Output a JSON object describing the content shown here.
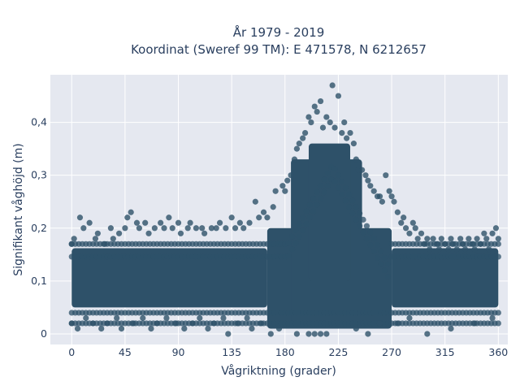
{
  "chart_data": {
    "type": "scatter",
    "title_line1": "År 1979 - 2019",
    "title_line2": "Koordinat (Sweref 99 TM): E 471578, N 6212657",
    "xlabel": "Vågriktning (grader)",
    "ylabel": "Signifikant våghöjd (m)",
    "xlim": [
      -18,
      368
    ],
    "ylim": [
      -0.02,
      0.49
    ],
    "x_ticks": [
      0,
      45,
      90,
      135,
      180,
      225,
      270,
      315,
      360
    ],
    "x_tick_labels": [
      "0",
      "45",
      "90",
      "135",
      "180",
      "225",
      "270",
      "315",
      "360"
    ],
    "y_ticks": [
      0,
      0.1,
      0.2,
      0.3,
      0.4
    ],
    "y_tick_labels": [
      "0",
      "0,1",
      "0,2",
      "0,3",
      "0,4"
    ],
    "grid": true,
    "marker_color": "#2e5169",
    "background_color": "#e5e8f0",
    "series": [
      {
        "points": [
          [
            0,
            0.17
          ],
          [
            0,
            0.02
          ],
          [
            2,
            0.18
          ],
          [
            5,
            0.01
          ],
          [
            7,
            0.22
          ],
          [
            10,
            0.2
          ],
          [
            12,
            0.03
          ],
          [
            15,
            0.21
          ],
          [
            18,
            0.02
          ],
          [
            20,
            0.18
          ],
          [
            22,
            0.19
          ],
          [
            25,
            0.01
          ],
          [
            28,
            0.17
          ],
          [
            30,
            0.02
          ],
          [
            33,
            0.2
          ],
          [
            35,
            0.18
          ],
          [
            38,
            0.03
          ],
          [
            40,
            0.19
          ],
          [
            42,
            0.01
          ],
          [
            45,
            0.2
          ],
          [
            47,
            0.22
          ],
          [
            50,
            0.23
          ],
          [
            52,
            0.02
          ],
          [
            55,
            0.21
          ],
          [
            57,
            0.2
          ],
          [
            60,
            0.03
          ],
          [
            62,
            0.21
          ],
          [
            65,
            0.19
          ],
          [
            67,
            0.01
          ],
          [
            70,
            0.2
          ],
          [
            72,
            0.02
          ],
          [
            75,
            0.21
          ],
          [
            78,
            0.2
          ],
          [
            80,
            0.03
          ],
          [
            82,
            0.22
          ],
          [
            85,
            0.2
          ],
          [
            88,
            0.02
          ],
          [
            90,
            0.21
          ],
          [
            92,
            0.19
          ],
          [
            95,
            0.01
          ],
          [
            98,
            0.2
          ],
          [
            100,
            0.21
          ],
          [
            102,
            0.02
          ],
          [
            105,
            0.2
          ],
          [
            108,
            0.03
          ],
          [
            110,
            0.2
          ],
          [
            112,
            0.19
          ],
          [
            115,
            0.01
          ],
          [
            118,
            0.2
          ],
          [
            120,
            0.02
          ],
          [
            122,
            0.2
          ],
          [
            125,
            0.21
          ],
          [
            128,
            0.03
          ],
          [
            130,
            0.2
          ],
          [
            132,
            0.0
          ],
          [
            135,
            0.22
          ],
          [
            138,
            0.2
          ],
          [
            140,
            0.02
          ],
          [
            142,
            0.21
          ],
          [
            145,
            0.2
          ],
          [
            148,
            0.03
          ],
          [
            150,
            0.21
          ],
          [
            152,
            0.01
          ],
          [
            155,
            0.25
          ],
          [
            158,
            0.22
          ],
          [
            160,
            0.02
          ],
          [
            162,
            0.23
          ],
          [
            165,
            0.22
          ],
          [
            168,
            0.0
          ],
          [
            170,
            0.24
          ],
          [
            172,
            0.27
          ],
          [
            175,
            0.01
          ],
          [
            178,
            0.28
          ],
          [
            180,
            0.27
          ],
          [
            182,
            0.29
          ],
          [
            185,
            0.3
          ],
          [
            188,
            0.33
          ],
          [
            190,
            0.35
          ],
          [
            192,
            0.36
          ],
          [
            195,
            0.37
          ],
          [
            197,
            0.38
          ],
          [
            200,
            0.41
          ],
          [
            202,
            0.4
          ],
          [
            205,
            0.43
          ],
          [
            207,
            0.42
          ],
          [
            210,
            0.44
          ],
          [
            212,
            0.39
          ],
          [
            215,
            0.41
          ],
          [
            218,
            0.4
          ],
          [
            220,
            0.47
          ],
          [
            222,
            0.39
          ],
          [
            225,
            0.45
          ],
          [
            228,
            0.38
          ],
          [
            230,
            0.4
          ],
          [
            232,
            0.37
          ],
          [
            235,
            0.38
          ],
          [
            238,
            0.36
          ],
          [
            240,
            0.33
          ],
          [
            242,
            0.31
          ],
          [
            245,
            0.31
          ],
          [
            248,
            0.3
          ],
          [
            250,
            0.29
          ],
          [
            252,
            0.28
          ],
          [
            255,
            0.27
          ],
          [
            258,
            0.26
          ],
          [
            260,
            0.26
          ],
          [
            262,
            0.25
          ],
          [
            265,
            0.3
          ],
          [
            268,
            0.27
          ],
          [
            270,
            0.26
          ],
          [
            272,
            0.25
          ],
          [
            275,
            0.23
          ],
          [
            278,
            0.21
          ],
          [
            280,
            0.22
          ],
          [
            282,
            0.2
          ],
          [
            285,
            0.19
          ],
          [
            288,
            0.21
          ],
          [
            290,
            0.2
          ],
          [
            292,
            0.18
          ],
          [
            295,
            0.19
          ],
          [
            298,
            0.17
          ],
          [
            300,
            0.18
          ],
          [
            302,
            0.16
          ],
          [
            305,
            0.18
          ],
          [
            308,
            0.17
          ],
          [
            310,
            0.16
          ],
          [
            312,
            0.18
          ],
          [
            315,
            0.17
          ],
          [
            318,
            0.16
          ],
          [
            320,
            0.18
          ],
          [
            322,
            0.17
          ],
          [
            325,
            0.16
          ],
          [
            328,
            0.18
          ],
          [
            330,
            0.17
          ],
          [
            332,
            0.16
          ],
          [
            335,
            0.18
          ],
          [
            338,
            0.17
          ],
          [
            340,
            0.16
          ],
          [
            342,
            0.18
          ],
          [
            345,
            0.17
          ],
          [
            348,
            0.19
          ],
          [
            350,
            0.18
          ],
          [
            352,
            0.16
          ],
          [
            355,
            0.19
          ],
          [
            358,
            0.2
          ],
          [
            360,
            0.18
          ],
          [
            300,
            0.0
          ],
          [
            320,
            0.01
          ],
          [
            340,
            0.02
          ],
          [
            355,
            0.03
          ],
          [
            200,
            0.0
          ],
          [
            205,
            0.0
          ],
          [
            210,
            0.0
          ],
          [
            215,
            0.0
          ],
          [
            190,
            0.0
          ],
          [
            240,
            0.01
          ],
          [
            250,
            0.0
          ],
          [
            260,
            0.02
          ],
          [
            275,
            0.02
          ],
          [
            285,
            0.03
          ]
        ]
      }
    ]
  }
}
